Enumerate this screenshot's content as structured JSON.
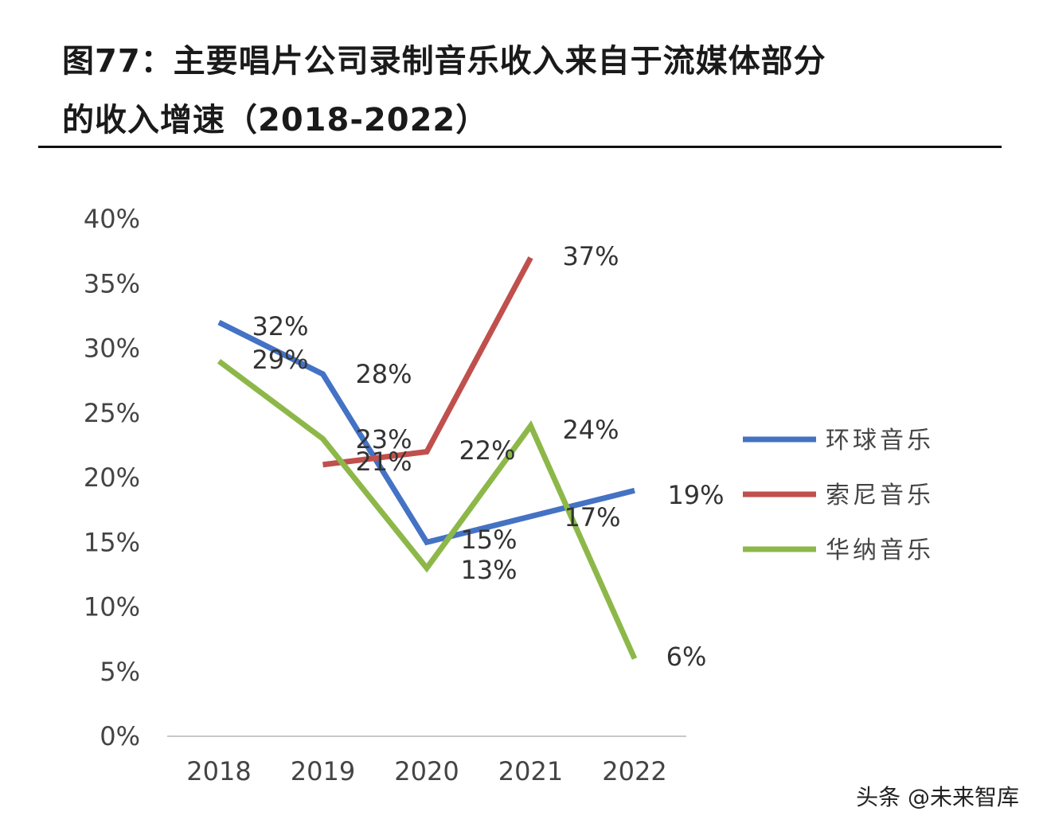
{
  "title_line1": "图77：主要唱片公司录制音乐收入来自于流媒体部分",
  "title_line2": "的收入增速（2018-2022）",
  "watermark": "头条 @未来智库",
  "chart_data": {
    "type": "line",
    "categories": [
      "2018",
      "2019",
      "2020",
      "2021",
      "2022"
    ],
    "ylim": [
      0,
      40
    ],
    "yticks": [
      "0%",
      "5%",
      "10%",
      "15%",
      "20%",
      "25%",
      "30%",
      "35%",
      "40%"
    ],
    "grid": false,
    "legend_position": "right",
    "series": [
      {
        "name": "环球音乐",
        "color": "#4472C4",
        "values": [
          32,
          28,
          15,
          17,
          19
        ],
        "labels": [
          "32%",
          "28%",
          "15%",
          "17%",
          "19%"
        ]
      },
      {
        "name": "索尼音乐",
        "color": "#C0504D",
        "values": [
          null,
          21,
          22,
          37,
          null
        ],
        "labels": [
          null,
          "21%",
          "22%",
          "37%",
          null
        ]
      },
      {
        "name": "华纳音乐",
        "color": "#8DB849",
        "values": [
          29,
          23,
          13,
          24,
          6
        ],
        "labels": [
          "29%",
          "23%",
          "13%",
          "24%",
          "6%"
        ]
      }
    ]
  }
}
